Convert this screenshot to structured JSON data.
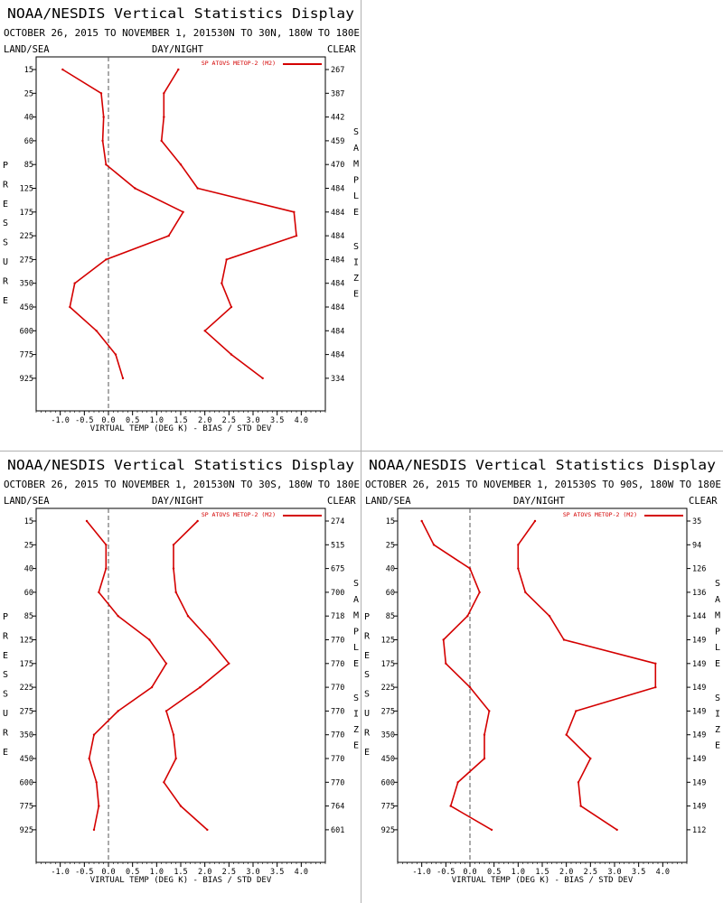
{
  "colors": {
    "series": "#d40000",
    "axis": "#000000",
    "zero_line": "#555555",
    "background": "#ffffff"
  },
  "common": {
    "title": "NOAA/NESDIS Vertical Statistics Display",
    "land_sea": "LAND/SEA",
    "day_night": "DAY/NIGHT",
    "clear": "CLEAR",
    "xlabel": "VIRTUAL TEMP (DEG K) - BIAS / STD DEV",
    "legend_label": "SP ATOVS METOP-2 (M2)",
    "left_axis_letters": [
      "P",
      "R",
      "E",
      "S",
      "S",
      "U",
      "R",
      "E"
    ],
    "right_axis_letters_1": [
      "S",
      "A",
      "M",
      "P",
      "L",
      "E"
    ],
    "right_axis_letters_2": [
      "S",
      "I",
      "Z",
      "E"
    ]
  },
  "chart_data": [
    {
      "type": "line",
      "subtitle": "OCTOBER 26, 2015 TO NOVEMBER 1, 2015",
      "region": "30N TO 30N, 180W TO 180E",
      "y_pressure": [
        15,
        25,
        40,
        60,
        85,
        125,
        175,
        225,
        275,
        350,
        450,
        600,
        775,
        925
      ],
      "sample_size": [
        267,
        387,
        442,
        459,
        470,
        484,
        484,
        484,
        484,
        484,
        484,
        484,
        484,
        334
      ],
      "x_ticks": [
        "-1.0",
        "-0.5",
        "0.0",
        "0.5",
        "1.0",
        "1.5",
        "2.0",
        "2.5",
        "3.0",
        "3.5",
        "4.0"
      ],
      "xlim": [
        -1.5,
        4.5
      ],
      "series": [
        {
          "values": [
            -0.95,
            -0.15,
            -0.1,
            -0.12,
            -0.05,
            0.55,
            1.55,
            1.25,
            -0.05,
            -0.7,
            -0.8,
            -0.25,
            0.15,
            0.3
          ]
        },
        {
          "values": [
            1.45,
            1.15,
            1.15,
            1.1,
            1.5,
            1.85,
            3.85,
            3.9,
            2.45,
            2.35,
            2.55,
            2.0,
            2.55,
            3.2
          ]
        }
      ]
    },
    {
      "type": "line",
      "subtitle": "OCTOBER 26, 2015 TO NOVEMBER 1, 2015",
      "region": "30N TO 30S, 180W TO 180E",
      "y_pressure": [
        15,
        25,
        40,
        60,
        85,
        125,
        175,
        225,
        275,
        350,
        450,
        600,
        775,
        925
      ],
      "sample_size": [
        274,
        515,
        675,
        700,
        718,
        770,
        770,
        770,
        770,
        770,
        770,
        770,
        764,
        601
      ],
      "x_ticks": [
        "-1.0",
        "-0.5",
        "0.0",
        "0.5",
        "1.0",
        "1.5",
        "2.0",
        "2.5",
        "3.0",
        "3.5",
        "4.0"
      ],
      "xlim": [
        -1.5,
        4.5
      ],
      "series": [
        {
          "values": [
            -0.45,
            -0.05,
            -0.05,
            -0.2,
            0.2,
            0.85,
            1.2,
            0.9,
            0.2,
            -0.3,
            -0.4,
            -0.25,
            -0.2,
            -0.3
          ]
        },
        {
          "values": [
            1.85,
            1.35,
            1.35,
            1.4,
            1.65,
            2.1,
            2.5,
            1.9,
            1.2,
            1.35,
            1.4,
            1.15,
            1.5,
            2.05
          ]
        }
      ]
    },
    {
      "type": "line",
      "subtitle": "OCTOBER 26, 2015 TO NOVEMBER 1, 2015",
      "region": "30S TO 90S, 180W TO 180E",
      "y_pressure": [
        15,
        25,
        40,
        60,
        85,
        125,
        175,
        225,
        275,
        350,
        450,
        600,
        775,
        925
      ],
      "sample_size": [
        35,
        94,
        126,
        136,
        144,
        149,
        149,
        149,
        149,
        149,
        149,
        149,
        149,
        112
      ],
      "x_ticks": [
        "-1.0",
        "-0.5",
        "0.0",
        "0.5",
        "1.0",
        "1.5",
        "2.0",
        "2.5",
        "3.0",
        "3.5",
        "4.0"
      ],
      "xlim": [
        -1.5,
        4.5
      ],
      "series": [
        {
          "values": [
            -1.0,
            -0.75,
            0.0,
            0.2,
            -0.05,
            -0.55,
            -0.5,
            0.0,
            0.4,
            0.3,
            0.3,
            -0.25,
            -0.4,
            0.45
          ]
        },
        {
          "values": [
            1.35,
            1.0,
            1.0,
            1.15,
            1.65,
            1.95,
            3.85,
            3.85,
            2.2,
            2.0,
            2.5,
            2.25,
            2.3,
            3.05
          ]
        }
      ]
    }
  ]
}
